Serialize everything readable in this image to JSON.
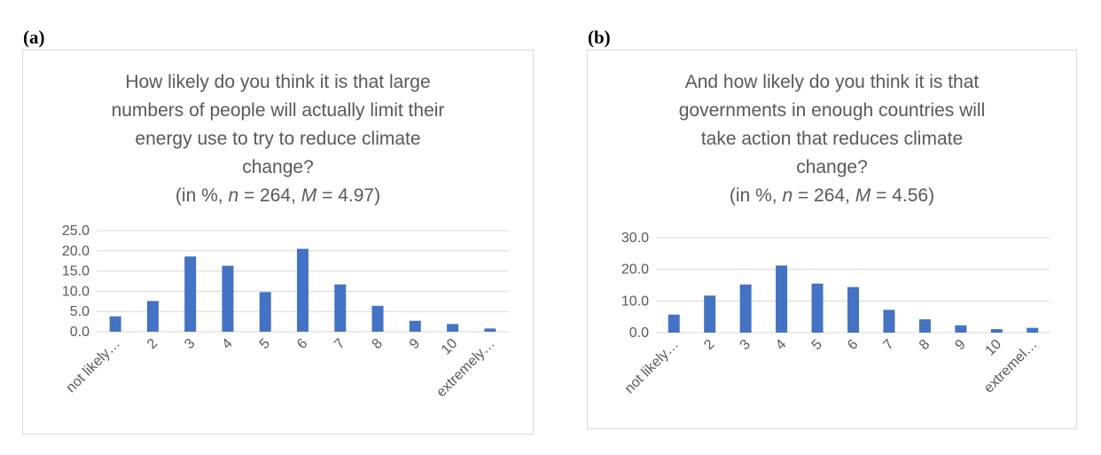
{
  "panels": [
    {
      "label": "(a)",
      "title_lines": [
        "How likely do you think it is that large",
        "numbers of people will actually limit their",
        "energy use to try to reduce climate",
        "change?"
      ],
      "stats": {
        "prefix": "(in %, ",
        "n_sym": "n",
        "n_text": " = 264, ",
        "m_sym": "M",
        "m_text": " = 4.97)"
      }
    },
    {
      "label": "(b)",
      "title_lines": [
        "And how likely do you think it is that",
        "governments in enough countries will",
        "take action that reduces climate",
        "change?"
      ],
      "stats": {
        "prefix": "(in %, ",
        "n_sym": "n",
        "n_text": " = 264, ",
        "m_sym": "M",
        "m_text": " = 4.56)"
      }
    }
  ],
  "chart_data": [
    {
      "type": "bar",
      "title": "How likely do you think it is that large numbers of people will actually limit their energy use to try to reduce climate change? (in %, n = 264, M = 4.97)",
      "categories": [
        "not likely…",
        "2",
        "3",
        "4",
        "5",
        "6",
        "7",
        "8",
        "9",
        "10",
        "extremely…"
      ],
      "values": [
        3.8,
        7.6,
        18.6,
        16.3,
        9.8,
        20.5,
        11.7,
        6.4,
        2.7,
        1.9,
        0.8
      ],
      "ylim": [
        0,
        25
      ],
      "yticks": [
        "0.0",
        "5.0",
        "10.0",
        "15.0",
        "20.0",
        "25.0"
      ],
      "grid": true,
      "color": "#4472c4"
    },
    {
      "type": "bar",
      "title": "And how likely do you think it is that governments in enough countries will take action that reduces climate change? (in %, n = 264, M = 4.56)",
      "categories": [
        "not likely…",
        "2",
        "3",
        "4",
        "5",
        "6",
        "7",
        "8",
        "9",
        "10",
        "extremel…"
      ],
      "values": [
        5.7,
        11.7,
        15.2,
        21.2,
        15.5,
        14.4,
        7.2,
        4.2,
        2.3,
        1.1,
        1.5
      ],
      "ylim": [
        0,
        30
      ],
      "yticks": [
        "0.0",
        "10.0",
        "20.0",
        "30.0"
      ],
      "grid": true,
      "color": "#4472c4"
    }
  ]
}
